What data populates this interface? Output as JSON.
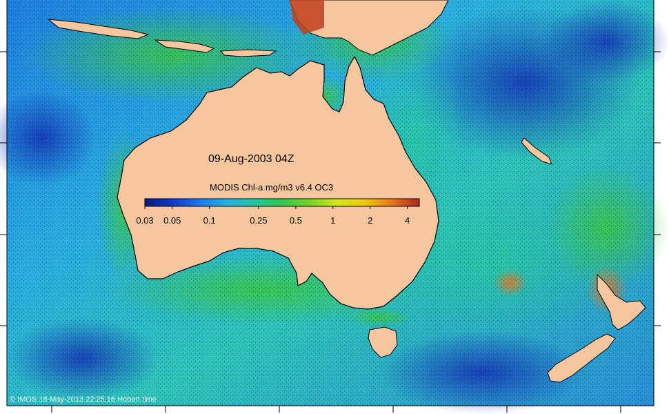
{
  "map": {
    "date_label": "09-Aug-2003 04Z",
    "colorbar": {
      "title": "MODIS Chl-a mg/m3 v6.4 OC3",
      "ticks": [
        "0.03",
        "0.05",
        "0.1",
        "0.25",
        "0.5",
        "1",
        "2",
        "4"
      ],
      "tick_values": [
        0.03,
        0.05,
        0.1,
        0.25,
        0.5,
        1,
        2,
        4
      ],
      "range": [
        0.03,
        5
      ],
      "scale": "log",
      "colors": [
        "#0a1a7a",
        "#1236c8",
        "#1e78f0",
        "#22b4e6",
        "#1fc8a0",
        "#32c850",
        "#78d228",
        "#d2e61e",
        "#f0c814",
        "#e6781e",
        "#a8281e"
      ]
    },
    "credit": "© IMOS 18-May-2013 22:25:16 Hobart time",
    "colors": {
      "land": "#f6c79e",
      "ocean_low": "#1e6ede",
      "ocean_mid": "#28c8b4",
      "coastal_high": "#3cc83c",
      "bloom": "#e6781e"
    }
  }
}
